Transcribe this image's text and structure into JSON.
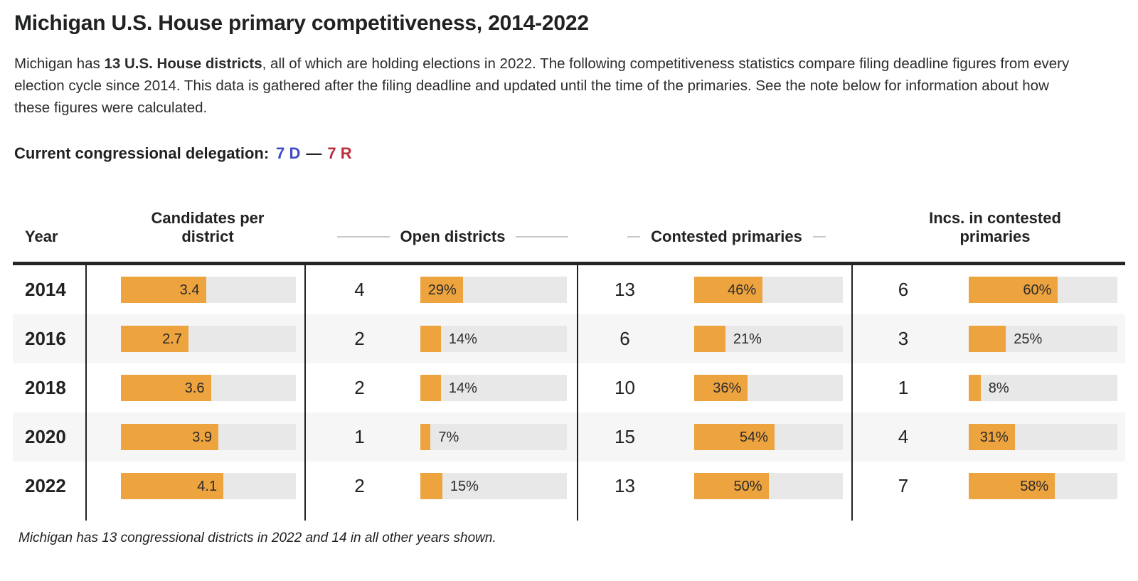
{
  "page": {
    "title": "Michigan U.S. House primary competitiveness, 2014-2022",
    "description": {
      "prefix": "Michigan has ",
      "bold": "13 U.S. House districts",
      "suffix": ", all of which are holding elections in 2022. The following competitiveness statistics compare filing deadline figures from every election cycle since 2014. This data is gathered after the filing deadline and updated until the time of the primaries. See the note below for information about how these figures were calculated."
    },
    "delegation": {
      "label": "Current congressional delegation:",
      "dem": "7 D",
      "separator": "—",
      "rep": "7 R"
    },
    "footnote": "Michigan has 13 congressional districts in 2022 and 14 in all other years shown."
  },
  "colors": {
    "bar_fill": "#EDA33E",
    "bar_track": "#E8E8E8",
    "dem_blue": "#3B4BC8",
    "rep_red": "#B82E3C",
    "header_rule": "#262626"
  },
  "chart_data": {
    "type": "table",
    "columns": [
      "Year",
      "Candidates per district",
      "Open districts",
      "Contested primaries",
      "Incs. in contested primaries"
    ],
    "bar_scales": {
      "candidates_per_district_max": 7,
      "percent_max": 100
    },
    "legend": "orange bar = value relative to scale; labels show value",
    "rows": [
      {
        "year": "2014",
        "candidates_per_district": 3.4,
        "open_districts": 4,
        "open_districts_pct": 29,
        "contested_primaries": 13,
        "contested_primaries_pct": 46,
        "incs_in_contested": 6,
        "incs_in_contested_pct": 60
      },
      {
        "year": "2016",
        "candidates_per_district": 2.7,
        "open_districts": 2,
        "open_districts_pct": 14,
        "contested_primaries": 6,
        "contested_primaries_pct": 21,
        "incs_in_contested": 3,
        "incs_in_contested_pct": 25
      },
      {
        "year": "2018",
        "candidates_per_district": 3.6,
        "open_districts": 2,
        "open_districts_pct": 14,
        "contested_primaries": 10,
        "contested_primaries_pct": 36,
        "incs_in_contested": 1,
        "incs_in_contested_pct": 8
      },
      {
        "year": "2020",
        "candidates_per_district": 3.9,
        "open_districts": 1,
        "open_districts_pct": 7,
        "contested_primaries": 15,
        "contested_primaries_pct": 54,
        "incs_in_contested": 4,
        "incs_in_contested_pct": 31
      },
      {
        "year": "2022",
        "candidates_per_district": 4.1,
        "open_districts": 2,
        "open_districts_pct": 15,
        "contested_primaries": 13,
        "contested_primaries_pct": 50,
        "incs_in_contested": 7,
        "incs_in_contested_pct": 58
      }
    ]
  }
}
